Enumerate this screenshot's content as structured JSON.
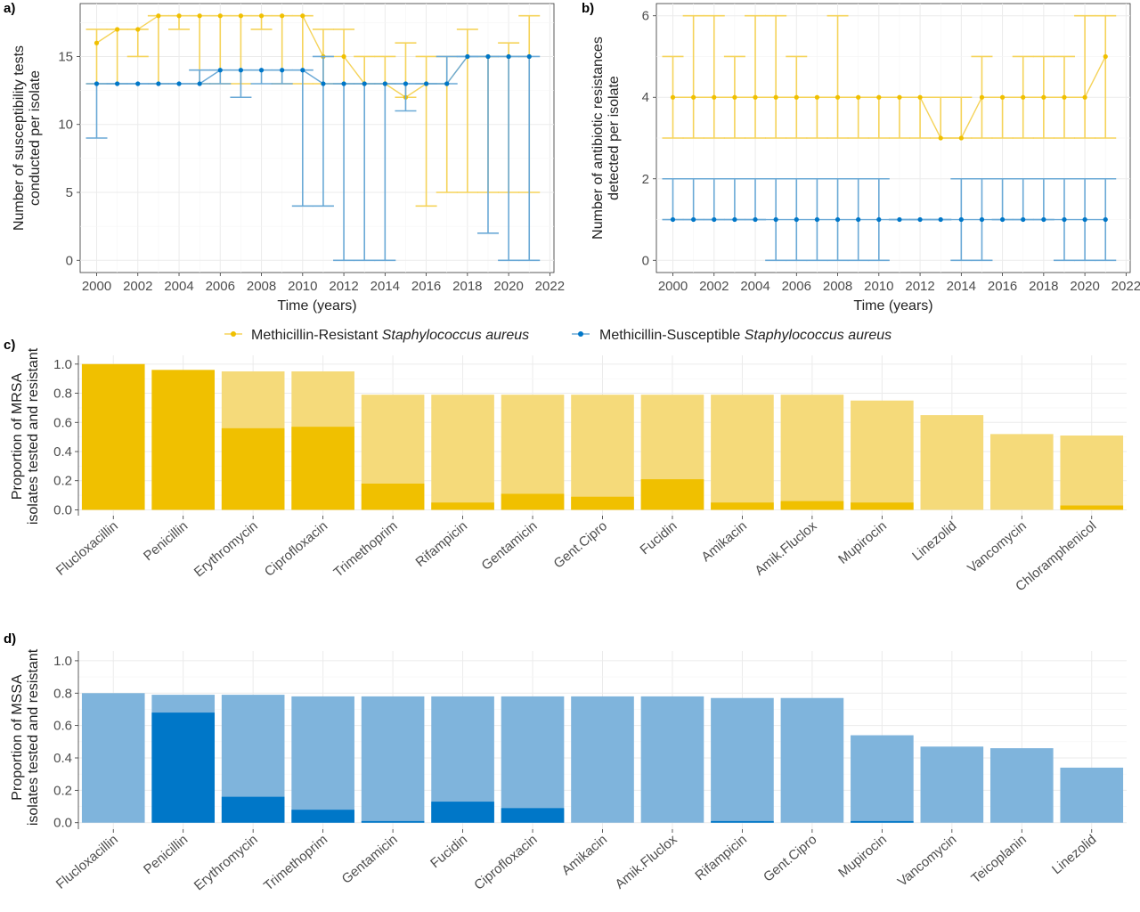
{
  "colors": {
    "mrsa": "#f0c000",
    "mrsa_light": "#f5da7a",
    "mrsa_line": "#f5d35a",
    "mssa": "#0077c8",
    "mssa_light": "#7fb4dc",
    "mssa_line": "#6aa9d6",
    "grid_major": "#ebebeb",
    "grid_minor": "#f5f5f5"
  },
  "legend": {
    "mrsa_prefix": "Methicillin-Resistant ",
    "mrsa_italic": "Staphylococcus aureus",
    "mssa_prefix": "Methicillin-Susceptible ",
    "mssa_italic": "Staphylococcus aureus"
  },
  "chart_data": [
    {
      "id": "a",
      "panel_label": "a)",
      "type": "scatter",
      "error_bars": true,
      "xlabel": "Time (years)",
      "ylabel": [
        "Number of susceptibility tests",
        "conducted per isolate"
      ],
      "xlim": [
        1999.2,
        2022.2
      ],
      "ylim": [
        -0.9,
        18.9
      ],
      "x_ticks": [
        2000,
        2002,
        2004,
        2006,
        2008,
        2010,
        2012,
        2014,
        2016,
        2018,
        2020,
        2022
      ],
      "x_tick_labels": [
        "2000",
        "2002",
        "2004",
        "2006",
        "2008",
        "2010",
        "2012",
        "2014",
        "2016",
        "2018",
        "2020",
        "2022"
      ],
      "y_ticks": [
        0,
        5,
        10,
        15
      ],
      "grid": true,
      "series": [
        {
          "name": "Methicillin-Resistant Staphylococcus aureus",
          "key": "mrsa",
          "x": [
            2000,
            2001,
            2002,
            2003,
            2004,
            2005,
            2006,
            2007,
            2008,
            2009,
            2010,
            2011,
            2012,
            2013,
            2014,
            2015,
            2016,
            2017,
            2018,
            2019,
            2020,
            2021
          ],
          "y": [
            16,
            17,
            17,
            18,
            18,
            18,
            18,
            18,
            18,
            18,
            18,
            15,
            15,
            13,
            13,
            12,
            13,
            13,
            15,
            15,
            15,
            15
          ],
          "lower": [
            13,
            13,
            15,
            13,
            17,
            13,
            13,
            13,
            17,
            13,
            13,
            13,
            13,
            13,
            13,
            12,
            4,
            5,
            5,
            5,
            5,
            5
          ],
          "upper": [
            17,
            17,
            17,
            18,
            18,
            18,
            18,
            18,
            18,
            18,
            18,
            17,
            17,
            15,
            15,
            16,
            15,
            15,
            17,
            15,
            16,
            18
          ]
        },
        {
          "name": "Methicillin-Susceptible Staphylococcus aureus",
          "key": "mssa",
          "x": [
            2000,
            2001,
            2002,
            2003,
            2004,
            2005,
            2006,
            2007,
            2008,
            2009,
            2010,
            2011,
            2012,
            2013,
            2014,
            2015,
            2016,
            2017,
            2018,
            2019,
            2020,
            2021
          ],
          "y": [
            13,
            13,
            13,
            13,
            13,
            13,
            14,
            14,
            14,
            14,
            14,
            13,
            13,
            13,
            13,
            13,
            13,
            13,
            15,
            15,
            15,
            15
          ],
          "lower": [
            9,
            13,
            13,
            13,
            13,
            13,
            13,
            12,
            13,
            13,
            4,
            4,
            0,
            0,
            0,
            11,
            13,
            13,
            15,
            2,
            0,
            0
          ],
          "upper": [
            13,
            13,
            13,
            13,
            13,
            14,
            14,
            14,
            14,
            14,
            14,
            15,
            13,
            13,
            13,
            13,
            13,
            15,
            15,
            15,
            15,
            15
          ]
        }
      ]
    },
    {
      "id": "b",
      "panel_label": "b)",
      "type": "scatter",
      "error_bars": true,
      "xlabel": "Time (years)",
      "ylabel": [
        "Number of antibiotic resistances",
        "detected per isolate"
      ],
      "xlim": [
        1999.2,
        2022.2
      ],
      "ylim": [
        -0.3,
        6.3
      ],
      "x_ticks": [
        2000,
        2002,
        2004,
        2006,
        2008,
        2010,
        2012,
        2014,
        2016,
        2018,
        2020,
        2022
      ],
      "x_tick_labels": [
        "2000",
        "2002",
        "2004",
        "2006",
        "2008",
        "2010",
        "2012",
        "2014",
        "2016",
        "2018",
        "2020",
        "2022"
      ],
      "y_ticks": [
        0,
        2,
        4,
        6
      ],
      "grid": true,
      "series": [
        {
          "name": "Methicillin-Resistant Staphylococcus aureus",
          "key": "mrsa",
          "x": [
            2000,
            2001,
            2002,
            2003,
            2004,
            2005,
            2006,
            2007,
            2008,
            2009,
            2010,
            2011,
            2012,
            2013,
            2014,
            2015,
            2016,
            2017,
            2018,
            2019,
            2020,
            2021
          ],
          "y": [
            4,
            4,
            4,
            4,
            4,
            4,
            4,
            4,
            4,
            4,
            4,
            4,
            4,
            3,
            3,
            4,
            4,
            4,
            4,
            4,
            4,
            5
          ],
          "lower": [
            3,
            3,
            3,
            3,
            3,
            3,
            3,
            3,
            3,
            3,
            3,
            3,
            3,
            3,
            3,
            3,
            3,
            3,
            3,
            3,
            3,
            3
          ],
          "upper": [
            5,
            6,
            6,
            5,
            6,
            6,
            5,
            4,
            6,
            4,
            4,
            4,
            4,
            4,
            4,
            5,
            4,
            5,
            5,
            5,
            6,
            6
          ]
        },
        {
          "name": "Methicillin-Susceptible Staphylococcus aureus",
          "key": "mssa",
          "x": [
            2000,
            2001,
            2002,
            2003,
            2004,
            2005,
            2006,
            2007,
            2008,
            2009,
            2010,
            2011,
            2012,
            2013,
            2014,
            2015,
            2016,
            2017,
            2018,
            2019,
            2020,
            2021
          ],
          "y": [
            1,
            1,
            1,
            1,
            1,
            1,
            1,
            1,
            1,
            1,
            1,
            1,
            1,
            1,
            1,
            1,
            1,
            1,
            1,
            1,
            1,
            1
          ],
          "lower": [
            1,
            1,
            1,
            1,
            1,
            0,
            0,
            0,
            0,
            0,
            0,
            1,
            1,
            1,
            0,
            0,
            1,
            1,
            1,
            0,
            0,
            0
          ],
          "upper": [
            2,
            2,
            2,
            2,
            2,
            2,
            2,
            2,
            2,
            2,
            2,
            1,
            1,
            1,
            2,
            2,
            2,
            2,
            2,
            2,
            2,
            2
          ]
        }
      ]
    },
    {
      "id": "c",
      "panel_label": "c)",
      "type": "bar",
      "stacked_overlay": true,
      "ylabel": [
        "Proportion of MRSA",
        "isolates tested and resistant"
      ],
      "ylim": [
        -0.04,
        1.06
      ],
      "y_ticks": [
        0.0,
        0.2,
        0.4,
        0.6,
        0.8,
        1.0
      ],
      "y_tick_labels": [
        "0.0",
        "0.2",
        "0.4",
        "0.6",
        "0.8",
        "1.0"
      ],
      "categories": [
        "Flucloxacillin",
        "Penicillin",
        "Erythromycin",
        "Ciprofloxacin",
        "Trimethoprim",
        "Rifampicin",
        "Gentamicin",
        "Gent.Cipro",
        "Fucidin",
        "Amikacin",
        "Amik.Fluclox",
        "Mupirocin",
        "Linezolid",
        "Vancomycin",
        "Chloramphenicol"
      ],
      "series": [
        {
          "name": "tested",
          "key": "mrsa_light",
          "values": [
            1.0,
            0.96,
            0.95,
            0.95,
            0.79,
            0.79,
            0.79,
            0.79,
            0.79,
            0.79,
            0.79,
            0.75,
            0.65,
            0.52,
            0.51
          ]
        },
        {
          "name": "resistant",
          "key": "mrsa",
          "values": [
            1.0,
            0.96,
            0.56,
            0.57,
            0.18,
            0.05,
            0.11,
            0.09,
            0.21,
            0.05,
            0.06,
            0.05,
            0.0,
            0.0,
            0.03
          ]
        }
      ]
    },
    {
      "id": "d",
      "panel_label": "d)",
      "type": "bar",
      "stacked_overlay": true,
      "ylabel": [
        "Proportion of MSSA",
        "isolates tested and resistant"
      ],
      "ylim": [
        -0.04,
        1.06
      ],
      "y_ticks": [
        0.0,
        0.2,
        0.4,
        0.6,
        0.8,
        1.0
      ],
      "y_tick_labels": [
        "0.0",
        "0.2",
        "0.4",
        "0.6",
        "0.8",
        "1.0"
      ],
      "categories": [
        "Flucloxacillin",
        "Penicillin",
        "Erythromycin",
        "Trimethoprim",
        "Gentamicin",
        "Fucidin",
        "Ciprofloxacin",
        "Amikacin",
        "Amik.Fluclox",
        "Rifampicin",
        "Gent.Cipro",
        "Mupirocin",
        "Vancomycin",
        "Teicoplanin",
        "Linezolid"
      ],
      "series": [
        {
          "name": "tested",
          "key": "mssa_light",
          "values": [
            0.8,
            0.79,
            0.79,
            0.78,
            0.78,
            0.78,
            0.78,
            0.78,
            0.78,
            0.77,
            0.77,
            0.54,
            0.47,
            0.46,
            0.34
          ]
        },
        {
          "name": "resistant",
          "key": "mssa",
          "values": [
            0.0,
            0.68,
            0.16,
            0.08,
            0.01,
            0.13,
            0.09,
            0.0,
            0.0,
            0.01,
            0.0,
            0.01,
            0.0,
            0.0,
            0.0
          ]
        }
      ]
    }
  ]
}
